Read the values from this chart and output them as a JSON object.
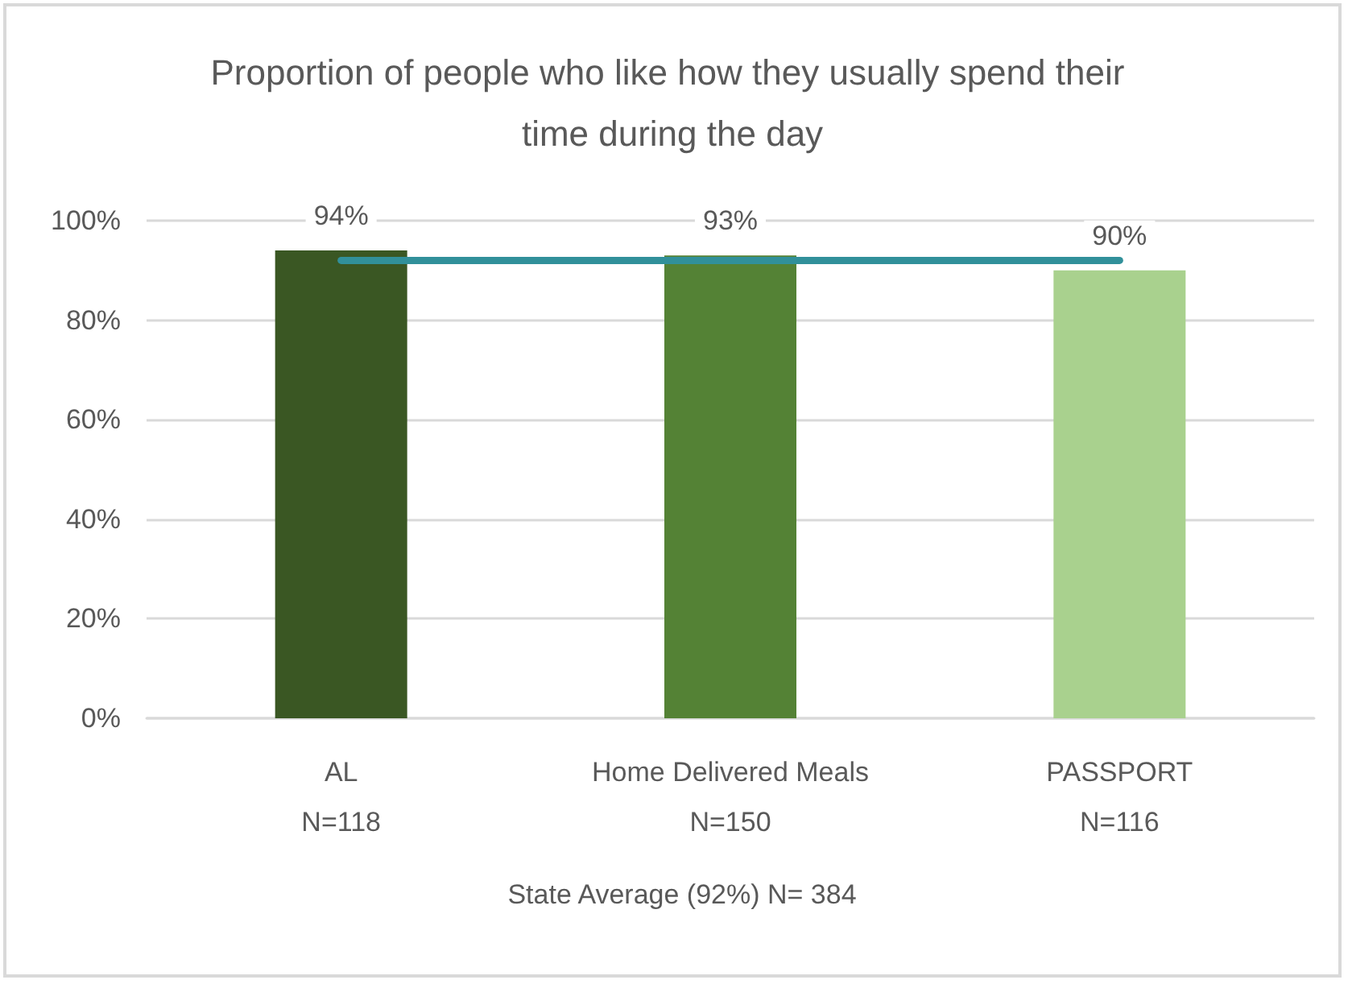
{
  "chart_data": {
    "type": "bar",
    "title": "Proportion of people who like how they usually spend their time during the day",
    "xlabel": "State Average (92%) N= 384",
    "categories": [
      "AL\nN=118",
      "Home Delivered Meals\nN=150",
      "PASSPORT\nN=116"
    ],
    "series": [
      {
        "values": [
          94,
          93,
          90
        ],
        "colors": [
          "#3a5723",
          "#548235",
          "#a9d18e"
        ],
        "value_labels": [
          "94%",
          "93%",
          "90%"
        ]
      },
      {
        "type": "line",
        "values": [
          92,
          92,
          92
        ],
        "color": "#31909a",
        "line_style": "solid"
      }
    ],
    "ylim": [
      0,
      100
    ],
    "yticks": [
      {
        "value": 0,
        "label": "0%"
      },
      {
        "value": 20,
        "label": "20%"
      },
      {
        "value": 40,
        "label": "40%"
      },
      {
        "value": 60,
        "label": "60%"
      },
      {
        "value": 80,
        "label": "80%"
      },
      {
        "value": 100,
        "label": "100%"
      }
    ],
    "grid": "y",
    "marker": "none"
  }
}
